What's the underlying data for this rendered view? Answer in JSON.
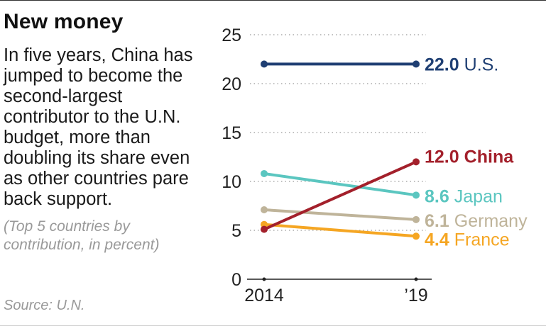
{
  "title": "New money",
  "description": "In five years, China has jumped to become the second-largest contributor to the U.N. budget, more than doubling its share even as other countries pare back support.",
  "note": "(Top 5 countries by contribution, in percent)",
  "source": "Source: U.N.",
  "chart_data": {
    "type": "line",
    "title": "New money",
    "xlabel": "",
    "ylabel": "percent",
    "categories": [
      "2014",
      "’19"
    ],
    "ylim": [
      0,
      25
    ],
    "yticks": [
      0,
      5,
      10,
      15,
      20,
      25
    ],
    "grid": true,
    "series": [
      {
        "name": "U.S.",
        "values": [
          22.0,
          22.0
        ],
        "end_label": "22.0",
        "color": "#1f3f73",
        "bold_name": false
      },
      {
        "name": "China",
        "values": [
          5.1,
          12.0
        ],
        "end_label": "12.0",
        "color": "#a3202b",
        "bold_name": true
      },
      {
        "name": "Japan",
        "values": [
          10.8,
          8.6
        ],
        "end_label": "8.6",
        "color": "#5bc6c0",
        "bold_name": false
      },
      {
        "name": "Germany",
        "values": [
          7.1,
          6.1
        ],
        "end_label": "6.1",
        "color": "#bfb49a",
        "bold_name": false
      },
      {
        "name": "France",
        "values": [
          5.6,
          4.4
        ],
        "end_label": "4.4",
        "color": "#f5a623",
        "bold_name": false
      }
    ]
  }
}
